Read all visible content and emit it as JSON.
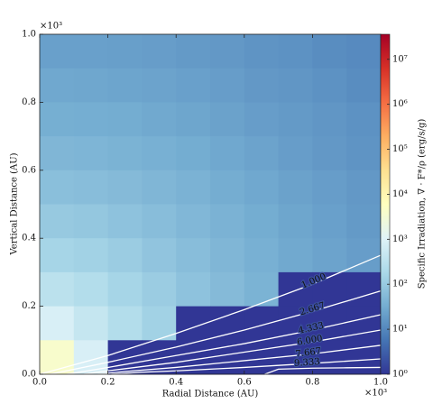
{
  "chart_data": {
    "type": "heatmap",
    "xlabel": "Radial Distance (AU)",
    "ylabel": "Vertical Distance (AU)",
    "x_multiplier": "×10³",
    "y_multiplier": "×10³",
    "colorbar_label": "Specific Irradiation, ∇ · F*/ρ (erg/s/g)",
    "xlim": [
      0,
      1
    ],
    "ylim": [
      0,
      1
    ],
    "xticks": [
      {
        "value": 0,
        "label": "0.0"
      },
      0.2,
      0.4,
      0.6,
      0.8,
      {
        "value": 1,
        "label": "1.0"
      }
    ],
    "yticks": [
      {
        "value": 0,
        "label": "0.0"
      },
      0.2,
      0.4,
      0.6,
      0.8,
      {
        "value": 1,
        "label": "1.0"
      }
    ],
    "log_color": true,
    "clim": [
      1,
      36000000
    ],
    "cticks": [
      {
        "value": 1,
        "label": "10⁰"
      },
      {
        "value": 10,
        "label": "10¹"
      },
      {
        "value": 100,
        "label": "10²"
      },
      {
        "value": 1000,
        "label": "10³"
      },
      {
        "value": 10000,
        "label": "10⁴"
      },
      {
        "value": 100000,
        "label": "10⁵"
      },
      {
        "value": 1000000,
        "label": "10⁶"
      },
      {
        "value": 10000000,
        "label": "10⁷"
      }
    ],
    "colormap": [
      "#313695",
      "#4575b4",
      "#74add1",
      "#abd9e9",
      "#e0f3f8",
      "#ffffbf",
      "#fee090",
      "#fdae61",
      "#f46d43",
      "#d73027",
      "#a50026"
    ],
    "x": [
      0.05,
      0.15,
      0.25,
      0.35,
      0.45,
      0.55,
      0.65,
      0.75,
      0.85,
      0.95
    ],
    "y": [
      0.95,
      0.85,
      0.75,
      0.65,
      0.55,
      0.45,
      0.35,
      0.25,
      0.15,
      0.05
    ],
    "z": [
      [
        22,
        22,
        21,
        20,
        18,
        17,
        15,
        14,
        12,
        11
      ],
      [
        28,
        27,
        25,
        24,
        22,
        20,
        17,
        16,
        14,
        12
      ],
      [
        35,
        34,
        32,
        29,
        26,
        23,
        20,
        18,
        16,
        14
      ],
      [
        47,
        45,
        41,
        37,
        32,
        28,
        24,
        20,
        17,
        15
      ],
      [
        66,
        62,
        55,
        47,
        40,
        33,
        28,
        23,
        20,
        17
      ],
      [
        98,
        89,
        75,
        62,
        49,
        40,
        32,
        26,
        22,
        18
      ],
      [
        160,
        140,
        110,
        82,
        62,
        47,
        37,
        29,
        24,
        20
      ],
      [
        310,
        240,
        160,
        110,
        75,
        55,
        41,
        1,
        1,
        1
      ],
      [
        800,
        440,
        240,
        140,
        1,
        1,
        1,
        1,
        1,
        1
      ],
      [
        4000,
        800,
        1,
        1,
        1,
        1,
        1,
        1,
        1,
        1
      ]
    ],
    "contour_color": "#ffffff",
    "contours": [
      {
        "value": 1,
        "value_label": "1.000",
        "x": [
          0,
          0.2,
          0.4,
          0.6,
          0.8,
          1.0
        ],
        "y": [
          0,
          0.055,
          0.12,
          0.19,
          0.265,
          0.35
        ]
      },
      {
        "value": 2.667,
        "value_label": "2.667",
        "x": [
          0.03,
          0.2,
          0.4,
          0.6,
          0.8,
          1.0
        ],
        "y": [
          0,
          0.035,
          0.08,
          0.13,
          0.185,
          0.245
        ]
      },
      {
        "value": 4.333,
        "value_label": "4.333",
        "x": [
          0.08,
          0.2,
          0.4,
          0.6,
          0.8,
          1.0
        ],
        "y": [
          0,
          0.02,
          0.055,
          0.09,
          0.13,
          0.175
        ]
      },
      {
        "value": 6,
        "value_label": "6.000",
        "x": [
          0.13,
          0.2,
          0.4,
          0.6,
          0.8,
          1.0
        ],
        "y": [
          0,
          0.01,
          0.035,
          0.065,
          0.095,
          0.13
        ]
      },
      {
        "value": 7.667,
        "value_label": "7.667",
        "x": [
          0.17,
          0.25,
          0.4,
          0.6,
          0.8,
          1.0
        ],
        "y": [
          0,
          0.008,
          0.02,
          0.04,
          0.06,
          0.085
        ]
      },
      {
        "value": 9.333,
        "value_label": "9.333",
        "x": [
          0.21,
          0.3,
          0.4,
          0.6,
          0.8,
          1.0
        ],
        "y": [
          0,
          0.006,
          0.01,
          0.02,
          0.032,
          0.045
        ]
      },
      {
        "x": [
          0.66,
          0.7,
          0.8,
          0.9,
          1.0
        ],
        "y": [
          0,
          0.015,
          0.018,
          0.019,
          0.02
        ]
      }
    ]
  }
}
